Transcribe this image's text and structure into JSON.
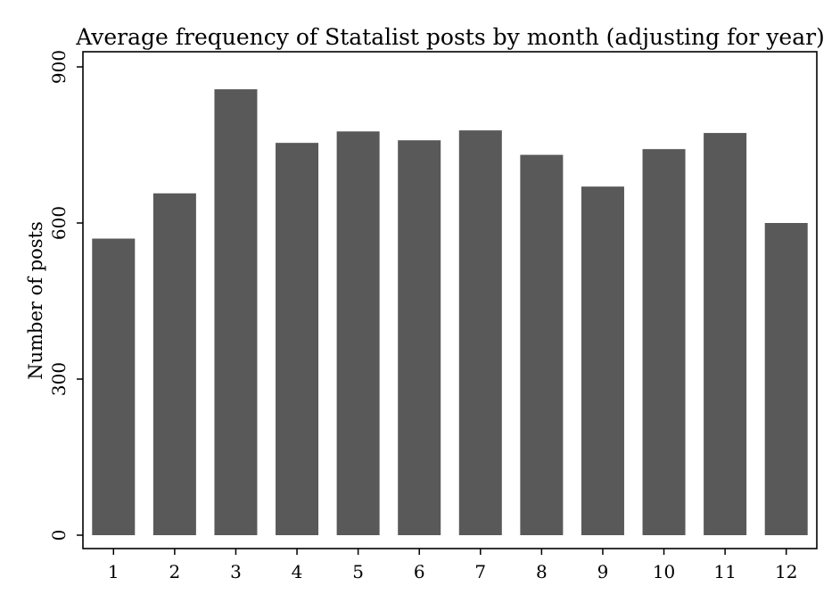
{
  "chart_data": {
    "type": "bar",
    "title": "Average frequency of Statalist posts by month (adjusting for year)",
    "xlabel": "",
    "ylabel": "Number of posts",
    "categories": [
      "1",
      "2",
      "3",
      "4",
      "5",
      "6",
      "7",
      "8",
      "9",
      "10",
      "11",
      "12"
    ],
    "values": [
      570,
      657,
      857,
      754,
      776,
      759,
      778,
      731,
      670,
      742,
      773,
      600
    ],
    "ylim": [
      0,
      900
    ],
    "yticks": [
      "0",
      "300",
      "600",
      "900"
    ],
    "grid": false,
    "legend": "none",
    "bar_color": "#595959"
  }
}
